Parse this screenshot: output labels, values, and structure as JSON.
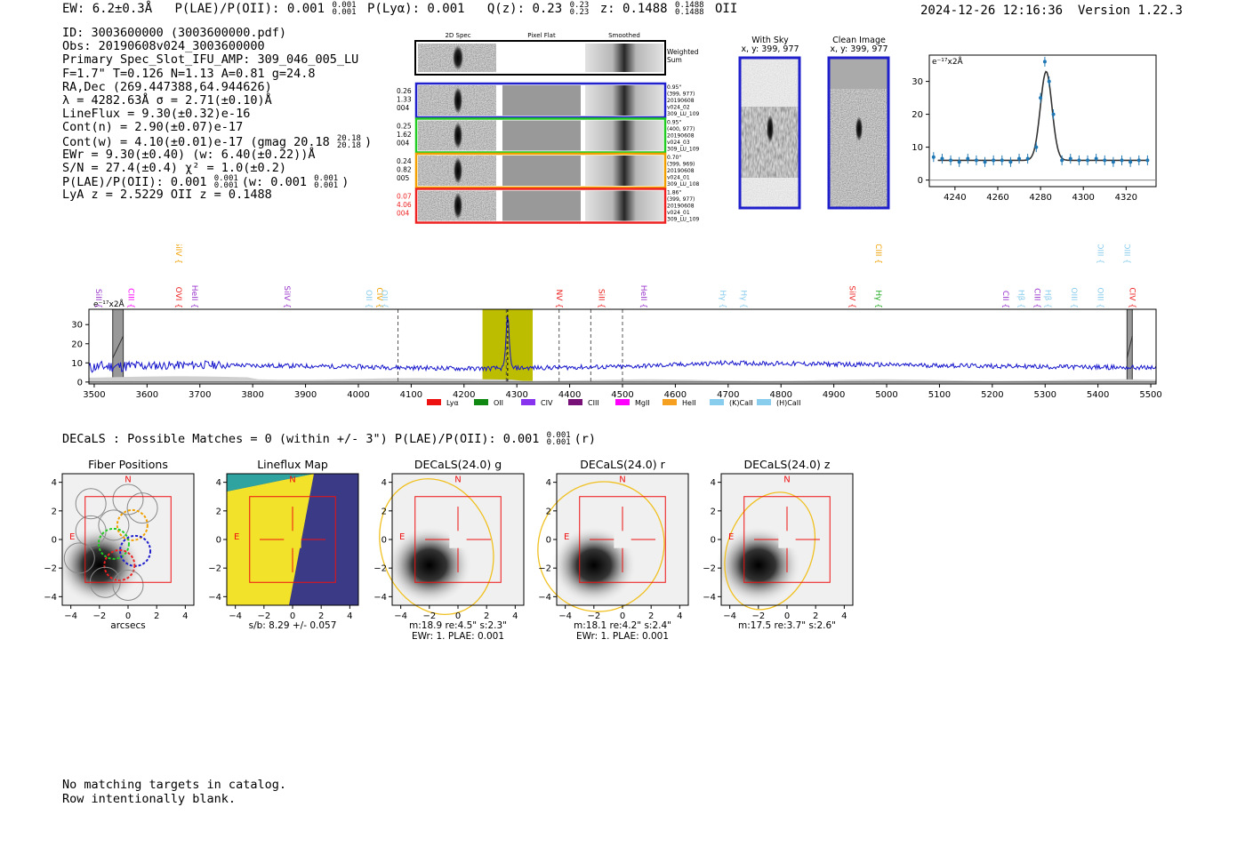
{
  "header": {
    "ew": "EW: 6.2±0.3Å",
    "plae_label": "P(LAE)/P(OII): 0.001",
    "plae_hi": "0.001",
    "plae_lo": "0.001",
    "plya": "P(Lyα): 0.001",
    "qz_label": "Q(z): 0.23",
    "qz_hi": "0.23",
    "qz_lo": "0.23",
    "z_label": "z: 0.1488",
    "z_hi": "0.1488",
    "z_lo": "0.1488",
    "z_line": "OII"
  },
  "timestamp": "2024-12-26 12:16:36",
  "version": "Version 1.22.3",
  "info": {
    "l1": "ID: 3003600000 (3003600000.pdf)",
    "l2": "Obs: 20190608v024_3003600000",
    "l3": "Primary Spec_Slot_IFU_AMP: 309_046_005_LU",
    "l4": "F=1.7\"  T=0.126  N=1.13  A=0.81  g=24.8",
    "l5": "RA,Dec (269.447388,64.944626)",
    "l6": "λ = 4282.63Å  σ = 2.71(±0.10)Å",
    "l7": "LineFlux = 9.30(±0.32)e-16",
    "l8": "Cont(n) = 2.90(±0.07)e-17",
    "l9": "Cont(w) = 4.10(±0.01)e-17 (gmag 20.18",
    "l9_hi": "20.18",
    "l9_lo": "20.18",
    "l9_end": ")",
    "l10": "EWr = 9.30(±0.40) (w: 6.40(±0.22))Å",
    "l11": "S/N = 27.4(±0.4)  χ² = 1.0(±0.2)",
    "l12": "P(LAE)/P(OII): 0.001",
    "l12_hi": "0.001",
    "l12_lo": "0.001",
    "l12_mid": "(w: 0.001",
    "l12_hi2": "0.001",
    "l12_lo2": "0.001",
    "l12_end": ")",
    "l13": "LyA z = 2.5229  OII z = 0.1488"
  },
  "cutouts": {
    "col_headers": [
      "2D Spec",
      "Pixel Flat",
      "Smoothed"
    ],
    "weighted_sum": [
      "Weighted",
      "Sum"
    ],
    "rows": [
      {
        "left": [
          "0.26",
          "1.33",
          "004"
        ],
        "right": [
          "0.95\"",
          "(399, 977)",
          "20190608",
          "v024_02",
          "309_LU_109"
        ],
        "color": "#1f1fcc"
      },
      {
        "left": [
          "0.25",
          "1.62",
          "004"
        ],
        "right": [
          "0.95\"",
          "(400, 977)",
          "20190608",
          "v024_03",
          "309_LU_109"
        ],
        "color": "#22cc22"
      },
      {
        "left": [
          "0.24",
          "0.82",
          "005"
        ],
        "right": [
          "0.70\"",
          "(399, 969)",
          "20190608",
          "v024_01",
          "309_LU_108"
        ],
        "color": "#f0a000"
      },
      {
        "left": [
          "0.07",
          "4.06",
          "004"
        ],
        "right": [
          "1.86\"",
          "(399, 977)",
          "20190608",
          "v024_01",
          "309_LU_109"
        ],
        "color": "#ee2222"
      }
    ],
    "with_sky_title": [
      "With Sky",
      "x, y: 399, 977"
    ],
    "clean_title": [
      "Clean Image",
      "x, y: 399, 977"
    ]
  },
  "chart_data": [
    {
      "type": "scatter",
      "name": "emission-line-fit",
      "ylabel": "e⁻¹⁷x2Å",
      "xlim": [
        4228,
        4334
      ],
      "ylim": [
        -2,
        38
      ],
      "xticks": [
        4240,
        4260,
        4280,
        4300,
        4320
      ],
      "yticks": [
        0,
        10,
        20,
        30
      ],
      "points_x": [
        4230,
        4234,
        4238,
        4242,
        4246,
        4250,
        4254,
        4258,
        4262,
        4266,
        4270,
        4274,
        4278,
        4280,
        4282,
        4284,
        4286,
        4290,
        4294,
        4298,
        4302,
        4306,
        4310,
        4314,
        4318,
        4322,
        4326,
        4330
      ],
      "points_y": [
        7,
        6.5,
        6,
        5.5,
        6.5,
        6,
        5.5,
        6,
        6,
        5.5,
        6.5,
        6.5,
        10,
        25,
        36,
        30,
        20,
        6,
        6.5,
        6,
        6,
        6.5,
        6,
        5.5,
        6,
        5.5,
        6,
        6
      ],
      "fit": {
        "center": 4282.63,
        "sigma": 2.71,
        "amplitude": 27,
        "continuum": 6
      }
    },
    {
      "type": "line",
      "name": "full-spectrum",
      "ylabel": "e⁻¹⁷x2Å",
      "xlim": [
        3490,
        5510
      ],
      "ylim": [
        -1,
        38
      ],
      "xticks": [
        3500,
        3600,
        3700,
        3800,
        3900,
        4000,
        4100,
        4200,
        4300,
        4400,
        4500,
        4600,
        4700,
        4800,
        4900,
        5000,
        5100,
        5200,
        5300,
        5400,
        5500
      ],
      "yticks": [
        0,
        10,
        20,
        30
      ],
      "highlight_band": [
        4235,
        4330
      ],
      "peak_x": 4282.6,
      "dashed_lines": [
        4075,
        4280,
        4380,
        4440,
        4500
      ],
      "masked_regions": [
        [
          3535,
          3555
        ],
        [
          5455,
          5465
        ]
      ],
      "continuum": {
        "x": [
          3500,
          3700,
          4000,
          4200,
          4500,
          4700,
          5000,
          5300,
          5500
        ],
        "y": [
          8,
          9,
          8,
          7,
          8,
          10,
          9,
          8,
          7.5
        ]
      },
      "line_labels": [
        {
          "text": "SiII",
          "x": 3498,
          "row": "low",
          "color": "#9933cc"
        },
        {
          "text": "CIII",
          "x": 3560,
          "row": "low",
          "color": "#ff00ff"
        },
        {
          "text": "SiIV",
          "x": 3650,
          "row": "high",
          "color": "#f0a000"
        },
        {
          "text": "OVI",
          "x": 3650,
          "row": "low",
          "color": "#ee2222"
        },
        {
          "text": "HeII",
          "x": 3680,
          "row": "low",
          "color": "#9933cc"
        },
        {
          "text": "SiIV",
          "x": 3855,
          "row": "low",
          "color": "#9933cc"
        },
        {
          "text": "OII",
          "x": 4010,
          "row": "low",
          "color": "#88ccee"
        },
        {
          "text": "CIV",
          "x": 4030,
          "row": "low",
          "color": "#f0a000"
        },
        {
          "text": "OII",
          "x": 4040,
          "row": "low",
          "color": "#88ccee"
        },
        {
          "text": "NV",
          "x": 4370,
          "row": "low",
          "color": "#ee2222"
        },
        {
          "text": "SiII",
          "x": 4450,
          "row": "low",
          "color": "#ee2222"
        },
        {
          "text": "HeII",
          "x": 4530,
          "row": "low",
          "color": "#9933cc"
        },
        {
          "text": "Hγ",
          "x": 4680,
          "row": "low",
          "color": "#88ccee"
        },
        {
          "text": "Hγ",
          "x": 4720,
          "row": "low",
          "color": "#88ccee"
        },
        {
          "text": "SiIV",
          "x": 4925,
          "row": "low",
          "color": "#ee2222"
        },
        {
          "text": "CIII",
          "x": 4975,
          "row": "high",
          "color": "#f0a000"
        },
        {
          "text": "Hγ",
          "x": 4975,
          "row": "low",
          "color": "#22aa22"
        },
        {
          "text": "CII",
          "x": 5215,
          "row": "low",
          "color": "#9933cc"
        },
        {
          "text": "Hβ",
          "x": 5245,
          "row": "low",
          "color": "#88ccee"
        },
        {
          "text": "CIII",
          "x": 5275,
          "row": "low",
          "color": "#9933cc"
        },
        {
          "text": "Hβ",
          "x": 5295,
          "row": "low",
          "color": "#88ccee"
        },
        {
          "text": "OIII",
          "x": 5345,
          "row": "low",
          "color": "#88ccee"
        },
        {
          "text": "OIII",
          "x": 5395,
          "row": "high",
          "color": "#88ccee"
        },
        {
          "text": "OIII",
          "x": 5395,
          "row": "low",
          "color": "#88ccee"
        },
        {
          "text": "OIII",
          "x": 5445,
          "row": "high",
          "color": "#88ccee"
        },
        {
          "text": "CIV",
          "x": 5455,
          "row": "low",
          "color": "#ee2222"
        }
      ],
      "legend": [
        {
          "label": "Lyα",
          "color": "#ee1111"
        },
        {
          "label": "OII",
          "color": "#118811"
        },
        {
          "label": "CIV",
          "color": "#8833ee"
        },
        {
          "label": "CIII",
          "color": "#771177"
        },
        {
          "label": "MgII",
          "color": "#ff00ff"
        },
        {
          "label": "HeII",
          "color": "#f5a020"
        },
        {
          "label": "(K)CaII",
          "color": "#88ccee"
        },
        {
          "label": "(H)CaII",
          "color": "#88ccee"
        }
      ]
    }
  ],
  "decals": {
    "title": "DECaLS : Possible Matches = 0 (within +/- 3\")  P(LAE)/P(OII): 0.001",
    "title_hi": "0.001",
    "title_lo": "0.001",
    "title_end": "(r)",
    "ticks": [
      -4,
      -2,
      0,
      2,
      4
    ],
    "north": "N",
    "east": "E",
    "panels": [
      {
        "title": "Fiber Positions",
        "xlabel": "arcsecs",
        "caption": []
      },
      {
        "title": "Lineflux Map",
        "xlabel": "",
        "caption": [
          "s/b: 8.29 +/- 0.057"
        ]
      },
      {
        "title": "DECaLS(24.0) g",
        "xlabel": "",
        "caption": [
          "m:18.9  re:4.5\"  s:2.3\"",
          "EWr: 1. PLAE: 0.001"
        ]
      },
      {
        "title": "DECaLS(24.0) r",
        "xlabel": "",
        "caption": [
          "m:18.1  re:4.2\"  s:2.4\"",
          "EWr: 1. PLAE: 0.001"
        ]
      },
      {
        "title": "DECaLS(24.0) z",
        "xlabel": "",
        "caption": [
          "m:17.5  re:3.7\"  s:2.6\""
        ]
      }
    ]
  },
  "footer": {
    "l1": "No matching targets in catalog.",
    "l2": "Row intentionally blank."
  }
}
